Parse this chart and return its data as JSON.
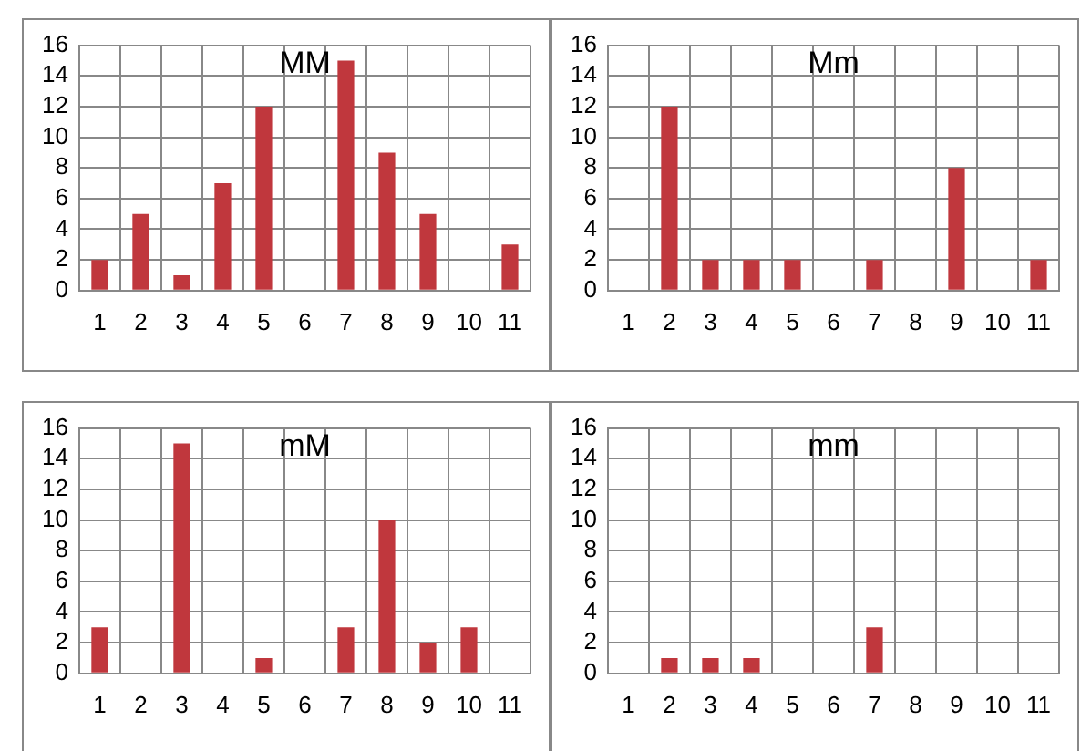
{
  "chart_data": [
    {
      "type": "bar",
      "title": "MM",
      "categories": [
        "1",
        "2",
        "3",
        "4",
        "5",
        "6",
        "7",
        "8",
        "9",
        "10",
        "11"
      ],
      "values": [
        2,
        5,
        1,
        7,
        12,
        0,
        15,
        9,
        5,
        0,
        3
      ],
      "color": "#c0373d",
      "ylim": [
        0,
        16
      ],
      "yticks": [
        0,
        2,
        4,
        6,
        8,
        10,
        12,
        14,
        16
      ],
      "grid": true,
      "legend": false
    },
    {
      "type": "bar",
      "title": "Mm",
      "categories": [
        "1",
        "2",
        "3",
        "4",
        "5",
        "6",
        "7",
        "8",
        "9",
        "10",
        "11"
      ],
      "values": [
        0,
        12,
        2,
        2,
        2,
        0,
        2,
        0,
        8,
        0,
        2
      ],
      "color": "#c0373d",
      "ylim": [
        0,
        16
      ],
      "yticks": [
        0,
        2,
        4,
        6,
        8,
        10,
        12,
        14,
        16
      ],
      "grid": true,
      "legend": false
    },
    {
      "type": "bar",
      "title": "mM",
      "categories": [
        "1",
        "2",
        "3",
        "4",
        "5",
        "6",
        "7",
        "8",
        "9",
        "10",
        "11"
      ],
      "values": [
        3,
        0,
        15,
        0,
        1,
        0,
        3,
        10,
        2,
        3,
        0
      ],
      "color": "#c0373d",
      "ylim": [
        0,
        16
      ],
      "yticks": [
        0,
        2,
        4,
        6,
        8,
        10,
        12,
        14,
        16
      ],
      "grid": true,
      "legend": false
    },
    {
      "type": "bar",
      "title": "mm",
      "categories": [
        "1",
        "2",
        "3",
        "4",
        "5",
        "6",
        "7",
        "8",
        "9",
        "10",
        "11"
      ],
      "values": [
        0,
        1,
        1,
        1,
        0,
        0,
        3,
        0,
        0,
        0,
        0
      ],
      "color": "#c0373d",
      "ylim": [
        0,
        16
      ],
      "yticks": [
        0,
        2,
        4,
        6,
        8,
        10,
        12,
        14,
        16
      ],
      "grid": true,
      "legend": false
    }
  ]
}
